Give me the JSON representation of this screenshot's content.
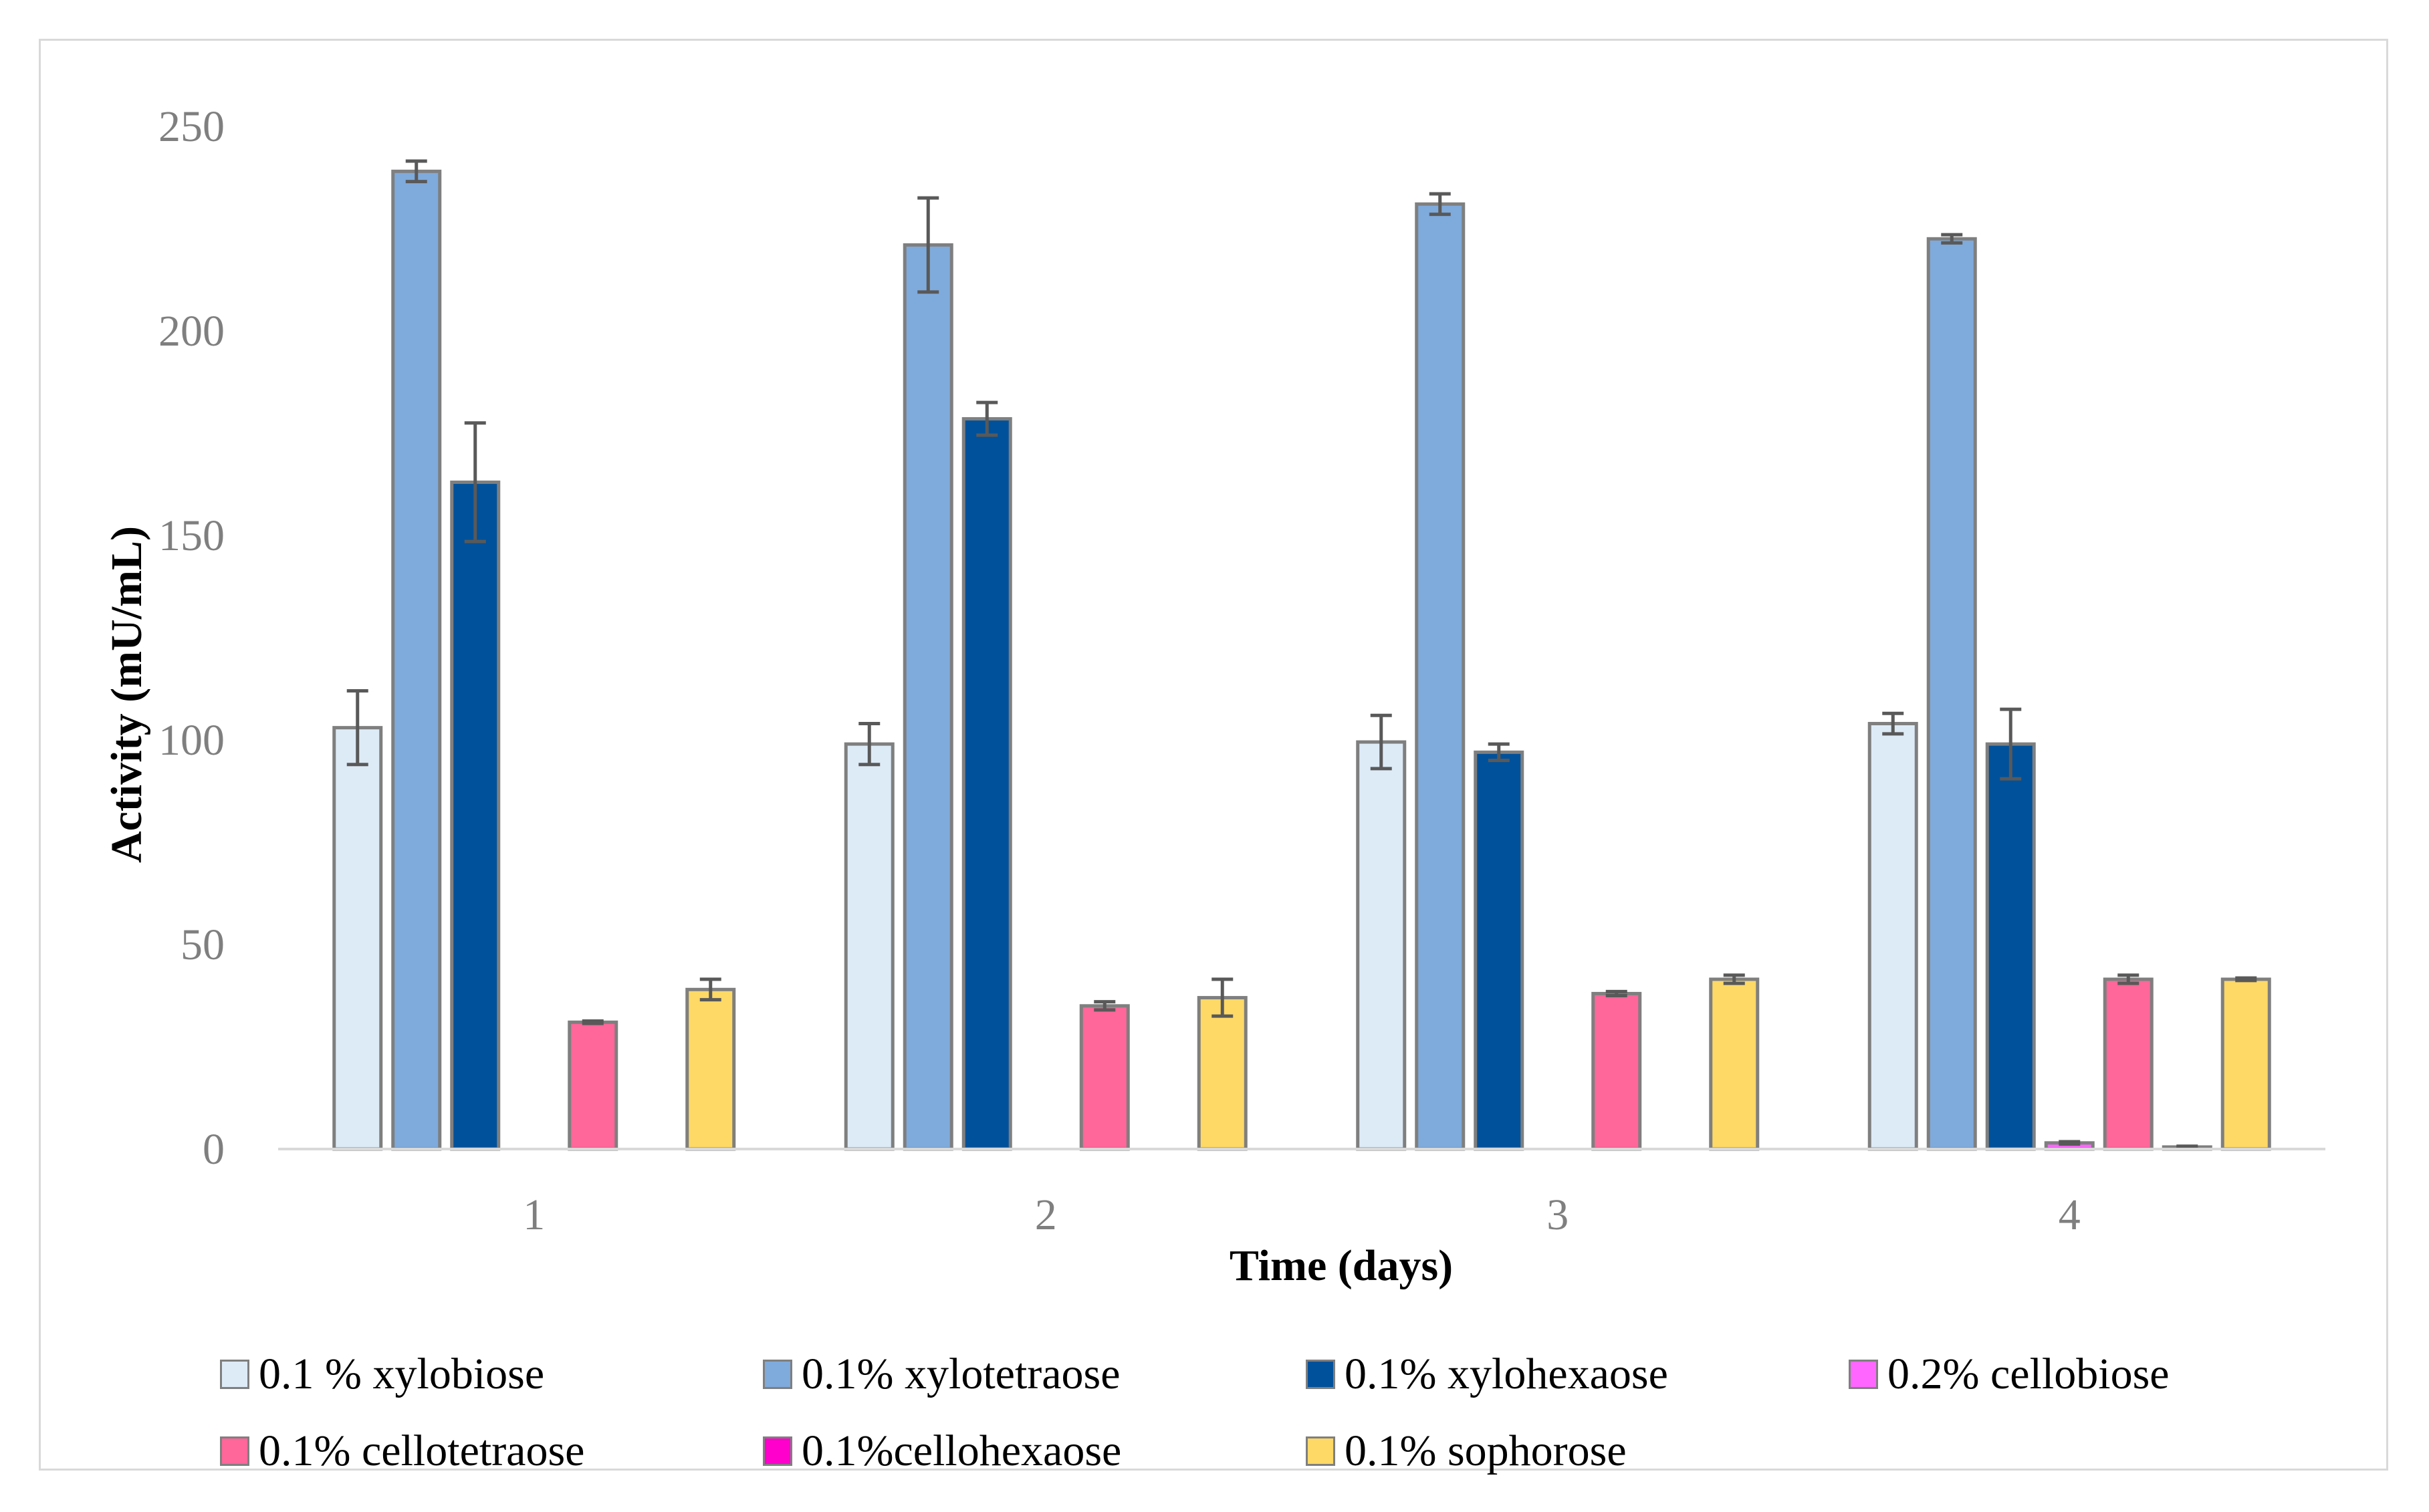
{
  "chart_data": {
    "type": "bar",
    "title": "",
    "xlabel": "Time (days)",
    "ylabel": "Activity (mU/mL)",
    "ylim": [
      0,
      250
    ],
    "yticks": [
      "0",
      "50",
      "100",
      "150",
      "200",
      "250"
    ],
    "categories": [
      "1",
      "2",
      "3",
      "4"
    ],
    "grid": false,
    "legend_position": "bottom",
    "series": [
      {
        "name": "0.1 % xylobiose",
        "color": "#ddebf7",
        "values": [
          103,
          99,
          99.5,
          104
        ],
        "errors": [
          9,
          5,
          6.5,
          2.5
        ]
      },
      {
        "name": "0.1% xylotetraose",
        "color": "#7faadc",
        "values": [
          239,
          221,
          231,
          222.5
        ],
        "errors": [
          2.5,
          11.5,
          2.5,
          1
        ]
      },
      {
        "name": "0.1% xylohexaose",
        "color": "#00519b",
        "values": [
          163,
          178.5,
          97,
          99
        ],
        "errors": [
          14.5,
          4,
          2,
          8.5
        ]
      },
      {
        "name": "0.2% cellobiose",
        "color": "#ff66ff",
        "values": [
          0,
          0,
          0,
          1.5
        ],
        "errors": [
          0,
          0,
          0,
          0.3
        ]
      },
      {
        "name": "0.1% cellotetraose",
        "color": "#ff6699",
        "values": [
          31,
          35,
          38,
          41.5
        ],
        "errors": [
          0.3,
          1,
          0.5,
          1
        ]
      },
      {
        "name": "0.1%cellohexaose",
        "color": "#ff00cc",
        "values": [
          0,
          0,
          0,
          0.5
        ],
        "errors": [
          0,
          0,
          0,
          0.2
        ]
      },
      {
        "name": "0.1% sophorose",
        "color": "#ffd966",
        "values": [
          39,
          37,
          41.5,
          41.5
        ],
        "errors": [
          2.5,
          4.5,
          1,
          0.3
        ]
      }
    ]
  }
}
